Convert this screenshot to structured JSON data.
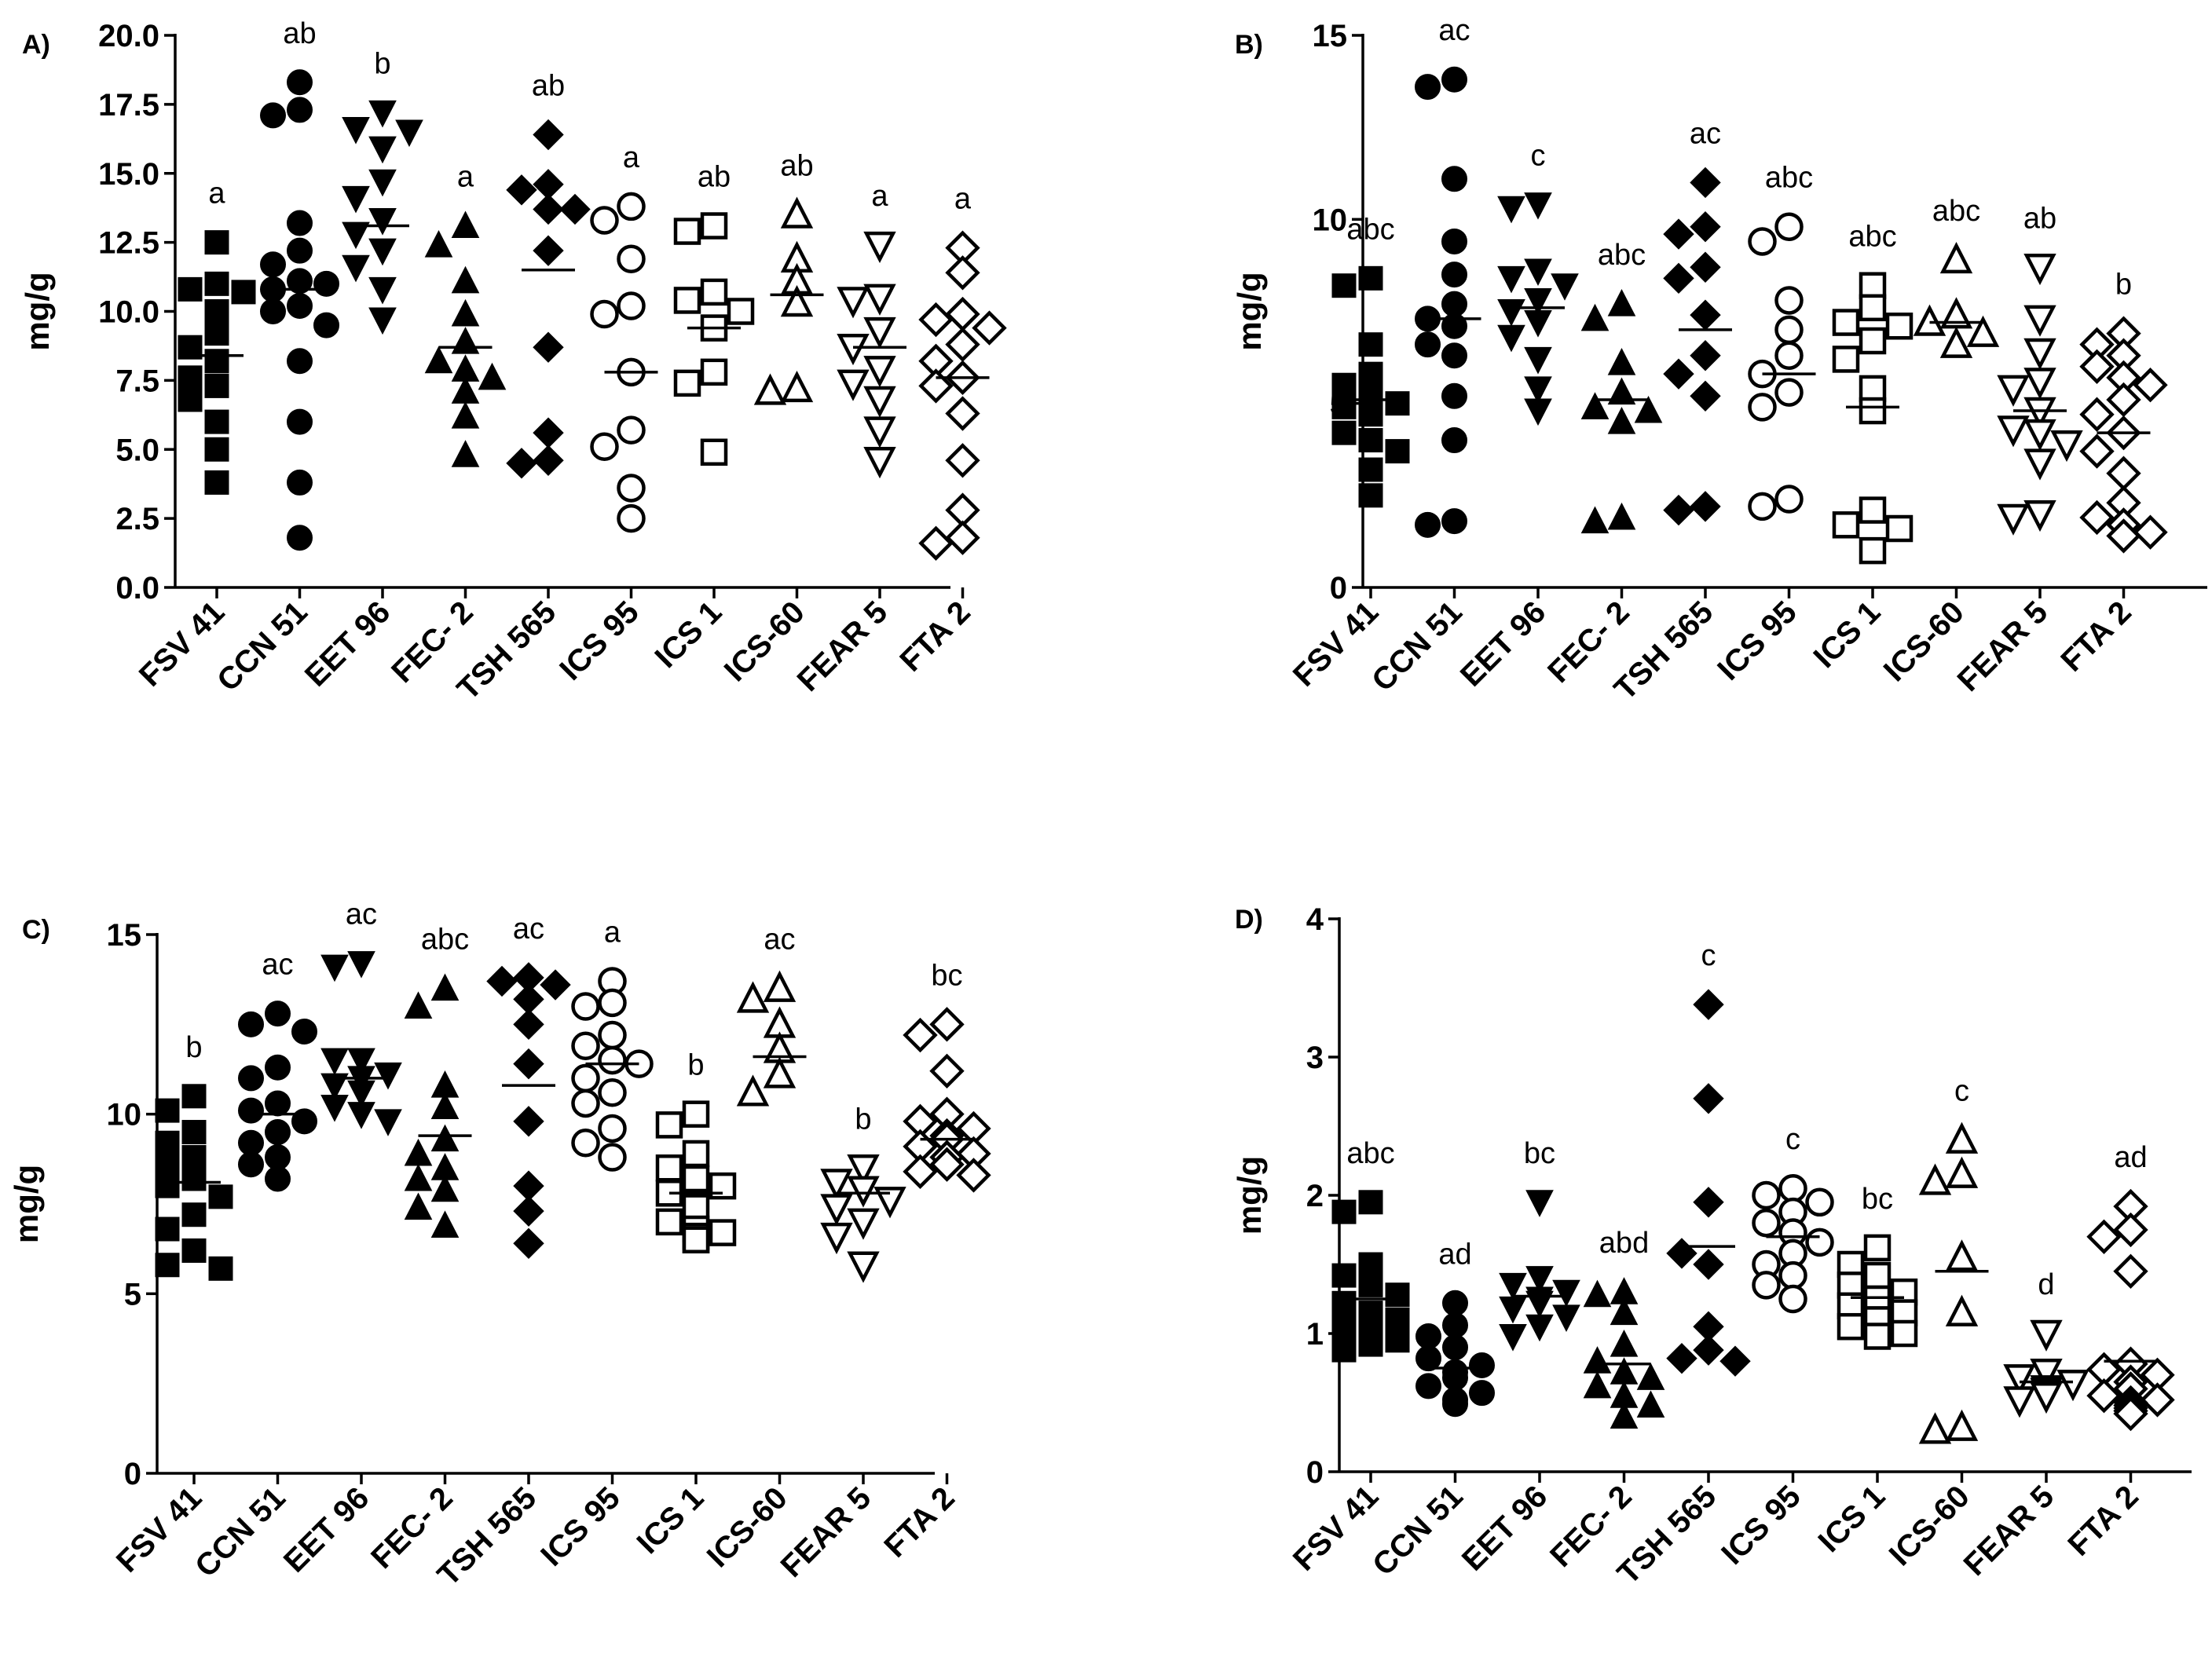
{
  "figure": {
    "categories": [
      "FSV 41",
      "CCN 51",
      "EET 96",
      "FEC- 2",
      "TSH 565",
      "ICS 95",
      "ICS 1",
      "ICS-60",
      "FEAR 5",
      "FTA 2"
    ],
    "markers": [
      "square",
      "circle",
      "triangle-down",
      "triangle-up",
      "diamond",
      "circle",
      "square",
      "triangle-up",
      "triangle-down",
      "diamond"
    ],
    "filled": [
      true,
      true,
      true,
      true,
      true,
      false,
      false,
      false,
      false,
      false
    ],
    "color": "#000000"
  },
  "chart_data": [
    {
      "panel": "A)",
      "type": "scatter",
      "ylabel": "mg/g",
      "ylim": [
        0,
        20
      ],
      "yticks": [
        0,
        2.5,
        5,
        7.5,
        10,
        12.5,
        15,
        17.5,
        20
      ],
      "ytick_labels": [
        "0.0",
        "2.5",
        "5.0",
        "7.5",
        "10.0",
        "12.5",
        "15.0",
        "17.5",
        "20.0"
      ],
      "significance": [
        "a",
        "ab",
        "b",
        "a",
        "ab",
        "a",
        "ab",
        "ab",
        "a",
        "a"
      ],
      "means": [
        8.4,
        10.8,
        13.1,
        8.7,
        11.5,
        7.8,
        9.4,
        10.6,
        8.7,
        7.6
      ],
      "series": [
        {
          "name": "FSV 41",
          "values": [
            12.5,
            11.0,
            10.8,
            10.7,
            10.0,
            9.2,
            8.7,
            8.2,
            7.6,
            7.3,
            6.8,
            6.0,
            5.0,
            3.8
          ]
        },
        {
          "name": "CCN 51",
          "values": [
            18.3,
            17.3,
            17.1,
            13.2,
            12.2,
            11.7,
            11.1,
            11.0,
            10.8,
            10.2,
            10.0,
            9.5,
            8.2,
            6.0,
            3.8,
            1.8
          ]
        },
        {
          "name": "EET 96",
          "values": [
            17.2,
            16.6,
            16.5,
            15.9,
            14.7,
            14.1,
            13.3,
            12.8,
            12.2,
            11.6,
            10.8,
            9.7
          ]
        },
        {
          "name": "FEC- 2",
          "values": [
            13.1,
            12.4,
            11.1,
            9.9,
            8.9,
            8.2,
            7.9,
            7.6,
            7.1,
            6.2,
            4.8
          ]
        },
        {
          "name": "TSH 565",
          "values": [
            16.4,
            14.6,
            14.4,
            13.7,
            13.7,
            12.2,
            8.7,
            5.6,
            4.6,
            4.5
          ]
        },
        {
          "name": "ICS 95",
          "values": [
            13.8,
            13.3,
            11.9,
            10.2,
            9.9,
            7.8,
            5.7,
            5.1,
            3.6,
            2.5
          ]
        },
        {
          "name": "ICS 1",
          "values": [
            13.1,
            12.9,
            10.7,
            10.4,
            10.0,
            9.4,
            7.8,
            7.4,
            4.9
          ]
        },
        {
          "name": "ICS-60",
          "values": [
            13.5,
            11.9,
            11.1,
            10.3,
            7.2,
            7.1
          ]
        },
        {
          "name": "FEAR 5",
          "values": [
            12.4,
            10.5,
            10.4,
            9.3,
            8.7,
            7.9,
            7.4,
            6.8,
            5.7,
            4.6
          ]
        },
        {
          "name": "FTA 2",
          "values": [
            12.3,
            11.4,
            9.9,
            9.7,
            9.4,
            8.8,
            8.2,
            7.6,
            7.3,
            6.3,
            4.6,
            2.8,
            1.8,
            1.6
          ]
        }
      ]
    },
    {
      "panel": "B)",
      "type": "scatter",
      "ylabel": "mg/g",
      "ylim": [
        0,
        15
      ],
      "yticks": [
        0,
        5,
        10,
        15
      ],
      "ytick_labels": [
        "0",
        "5",
        "10",
        "15"
      ],
      "significance": [
        "abc",
        "ac",
        "c",
        "abc",
        "ac",
        "abc",
        "abc",
        "abc",
        "ab",
        "b"
      ],
      "means": [
        5.1,
        7.3,
        7.6,
        5.1,
        7.0,
        5.8,
        4.9,
        7.2,
        4.8,
        4.2
      ],
      "series": [
        {
          "name": "FSV 41",
          "values": [
            8.4,
            8.2,
            6.6,
            5.8,
            5.5,
            5.2,
            5.0,
            4.9,
            4.7,
            4.2,
            4.0,
            3.7,
            3.2,
            2.5
          ]
        },
        {
          "name": "CCN 51",
          "values": [
            13.8,
            13.6,
            11.1,
            9.4,
            8.5,
            7.7,
            7.3,
            7.1,
            6.6,
            6.3,
            5.2,
            4.0,
            1.8,
            1.7
          ]
        },
        {
          "name": "EET 96",
          "values": [
            10.4,
            10.3,
            8.6,
            8.4,
            8.2,
            7.8,
            7.5,
            7.2,
            6.8,
            6.2,
            5.4,
            4.8
          ]
        },
        {
          "name": "FEC- 2",
          "values": [
            7.7,
            7.3,
            6.1,
            5.3,
            4.9,
            4.8,
            4.5,
            1.9,
            1.8
          ]
        },
        {
          "name": "TSH 565",
          "values": [
            11.0,
            9.8,
            9.6,
            8.7,
            8.4,
            7.4,
            6.3,
            5.8,
            5.2,
            2.2,
            2.1
          ]
        },
        {
          "name": "ICS 95",
          "values": [
            9.8,
            9.4,
            7.8,
            7.0,
            6.3,
            5.8,
            5.3,
            4.9,
            2.4,
            2.2
          ]
        },
        {
          "name": "ICS 1",
          "values": [
            8.2,
            7.6,
            7.2,
            7.1,
            6.7,
            6.2,
            5.4,
            4.8,
            2.1,
            1.7,
            1.6,
            1.0
          ]
        },
        {
          "name": "ICS-60",
          "values": [
            8.9,
            7.4,
            7.2,
            6.9,
            6.6
          ]
        },
        {
          "name": "FEAR 5",
          "values": [
            8.7,
            7.3,
            6.4,
            5.6,
            5.4,
            4.8,
            4.3,
            4.2,
            3.9,
            3.4,
            2.0,
            1.9
          ]
        },
        {
          "name": "FTA 2",
          "values": [
            6.9,
            6.6,
            6.3,
            6.0,
            5.7,
            5.5,
            5.1,
            4.7,
            4.2,
            3.7,
            3.1,
            2.3,
            1.9,
            1.7,
            1.5,
            1.4
          ]
        }
      ]
    },
    {
      "panel": "C)",
      "type": "scatter",
      "ylabel": "mg/g",
      "ylim": [
        0,
        15
      ],
      "yticks": [
        0,
        5,
        10,
        15
      ],
      "ytick_labels": [
        "0",
        "5",
        "10",
        "15"
      ],
      "significance": [
        "b",
        "ac",
        "ac",
        "abc",
        "ac",
        "a",
        "b",
        "ac",
        "b",
        "bc"
      ],
      "means": [
        8.1,
        10.0,
        11.0,
        9.4,
        10.8,
        11.4,
        7.8,
        11.6,
        7.8,
        9.3
      ],
      "series": [
        {
          "name": "FSV 41",
          "values": [
            10.5,
            10.1,
            9.5,
            9.2,
            8.8,
            8.6,
            8.2,
            8.0,
            7.7,
            7.2,
            6.8,
            6.2,
            5.8,
            5.7
          ]
        },
        {
          "name": "CCN 51",
          "values": [
            12.8,
            12.5,
            12.3,
            11.3,
            11.0,
            10.3,
            10.1,
            9.8,
            9.5,
            9.2,
            8.8,
            8.6,
            8.2
          ]
        },
        {
          "name": "EET 96",
          "values": [
            14.2,
            14.1,
            11.5,
            11.5,
            11.1,
            11.0,
            10.8,
            10.6,
            10.2,
            10.0,
            9.8
          ]
        },
        {
          "name": "FEC- 2",
          "values": [
            13.5,
            13.0,
            10.8,
            10.2,
            9.3,
            8.9,
            8.5,
            8.2,
            7.9,
            7.4,
            6.9
          ]
        },
        {
          "name": "TSH 565",
          "values": [
            13.8,
            13.7,
            13.6,
            13.2,
            12.5,
            11.4,
            9.8,
            8.0,
            7.3,
            6.4
          ]
        },
        {
          "name": "ICS 95",
          "values": [
            13.7,
            13.1,
            13.0,
            12.2,
            11.9,
            11.5,
            11.4,
            11.0,
            10.6,
            10.3,
            9.6,
            9.2,
            8.8
          ]
        },
        {
          "name": "ICS 1",
          "values": [
            10.0,
            9.7,
            8.9,
            8.5,
            8.2,
            8.0,
            7.8,
            7.4,
            7.0,
            6.8,
            6.7,
            6.6,
            6.5,
            6.5
          ]
        },
        {
          "name": "ICS-60",
          "values": [
            13.5,
            13.2,
            12.5,
            11.8,
            11.1,
            10.6
          ]
        },
        {
          "name": "FEAR 5",
          "values": [
            8.5,
            8.1,
            7.9,
            7.6,
            7.4,
            7.0,
            6.6,
            5.8
          ]
        },
        {
          "name": "FTA 2",
          "values": [
            12.5,
            12.2,
            11.2,
            10.0,
            9.8,
            9.6,
            9.4,
            9.3,
            9.1,
            8.9,
            8.8,
            8.6,
            8.4,
            8.3
          ]
        }
      ]
    },
    {
      "panel": "D)",
      "type": "scatter",
      "ylabel": "mg/g",
      "ylim": [
        0,
        4
      ],
      "yticks": [
        0,
        1,
        2,
        3,
        4
      ],
      "ytick_labels": [
        "0",
        "1",
        "2",
        "3",
        "4"
      ],
      "significance": [
        "abc",
        "ad",
        "bc",
        "abd",
        "c",
        "c",
        "bc",
        "c",
        "d",
        "ad"
      ],
      "means": [
        1.25,
        0.75,
        1.27,
        0.78,
        1.63,
        1.7,
        1.26,
        1.45,
        0.65,
        0.8
      ],
      "series": [
        {
          "name": "FSV 41",
          "values": [
            1.95,
            1.88,
            1.5,
            1.42,
            1.35,
            1.28,
            1.22,
            1.15,
            1.1,
            1.05,
            1.0,
            0.95,
            0.92,
            0.88
          ]
        },
        {
          "name": "CCN 51",
          "values": [
            1.22,
            1.06,
            0.98,
            0.9,
            0.82,
            0.77,
            0.72,
            0.68,
            0.62,
            0.57,
            0.52,
            0.49
          ]
        },
        {
          "name": "EET 96",
          "values": [
            1.95,
            1.4,
            1.35,
            1.3,
            1.25,
            1.22,
            1.18,
            1.12,
            1.05,
            0.98
          ]
        },
        {
          "name": "FEC- 2",
          "values": [
            1.3,
            1.28,
            1.15,
            0.92,
            0.8,
            0.72,
            0.68,
            0.62,
            0.55,
            0.48,
            0.4
          ]
        },
        {
          "name": "TSH 565",
          "values": [
            3.38,
            2.7,
            1.95,
            1.5,
            1.58,
            1.05,
            0.88,
            0.82,
            0.8
          ]
        },
        {
          "name": "ICS 95",
          "values": [
            2.05,
            2.0,
            1.95,
            1.88,
            1.8,
            1.73,
            1.66,
            1.58,
            1.5,
            1.42,
            1.35,
            1.25
          ]
        },
        {
          "name": "ICS 1",
          "values": [
            1.62,
            1.5,
            1.42,
            1.35,
            1.3,
            1.25,
            1.2,
            1.15,
            1.1,
            1.05,
            1.0,
            0.98
          ]
        },
        {
          "name": "ICS-60",
          "values": [
            2.4,
            2.15,
            2.1,
            1.55,
            1.15,
            0.32,
            0.3
          ]
        },
        {
          "name": "FEAR 5",
          "values": [
            1.0,
            0.72,
            0.68,
            0.64,
            0.6,
            0.58,
            0.55,
            0.52
          ]
        },
        {
          "name": "FTA 2",
          "values": [
            1.92,
            1.75,
            1.7,
            1.45,
            0.78,
            0.74,
            0.7,
            0.65,
            0.6,
            0.55,
            0.52,
            0.5,
            0.48,
            0.46,
            0.44,
            0.42
          ]
        }
      ]
    }
  ]
}
